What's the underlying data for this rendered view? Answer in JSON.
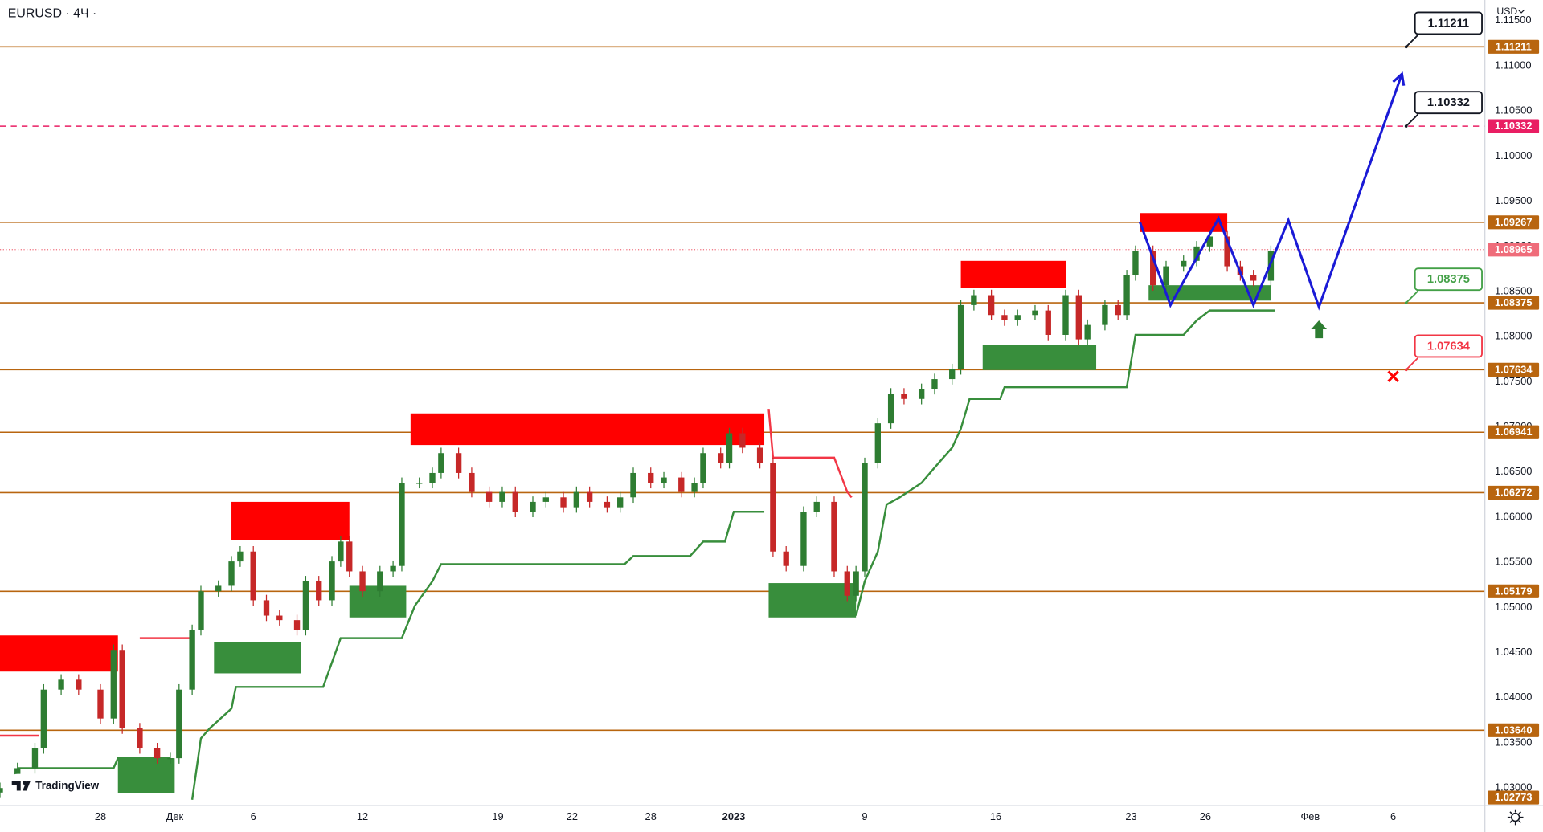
{
  "chart_data": {
    "type": "candlestick",
    "title": "EURUSD · 4Ч ·",
    "currency": "USD",
    "watermark": "TradingView",
    "up_color": "#2e7d32",
    "down_color": "#c62828",
    "x": [
      0,
      4,
      8,
      10,
      14,
      18,
      23,
      26,
      28,
      32,
      36,
      39,
      41,
      44,
      46,
      50,
      53,
      55,
      58,
      61,
      64,
      68,
      70,
      73,
      76,
      78,
      80,
      83,
      87,
      90,
      92,
      96,
      99,
      101,
      105,
      108,
      112,
      115,
      118,
      122,
      125,
      129,
      132,
      135,
      139,
      142,
      145,
      149,
      152,
      156,
      159,
      161,
      165,
      167,
      170,
      174,
      177,
      180,
      184,
      187,
      191,
      194,
      196,
      198,
      201,
      204,
      207,
      211,
      214,
      218,
      220,
      223,
      227,
      230,
      233,
      237,
      240,
      244,
      247,
      249,
      253,
      256,
      258,
      260,
      264,
      267,
      271,
      274,
      277,
      281,
      284,
      287,
      291
    ],
    "open": [
      1.0295,
      1.03,
      1.0322,
      1.0344,
      1.0409,
      1.042,
      1.0409,
      1.0377,
      1.0453,
      1.0366,
      1.0344,
      1.0333,
      1.0333,
      1.0409,
      1.0475,
      1.0518,
      1.0524,
      1.0551,
      1.0562,
      1.0508,
      1.0491,
      1.0486,
      1.0475,
      1.0529,
      1.0508,
      1.0551,
      1.0573,
      1.054,
      1.0518,
      1.054,
      1.0546,
      1.0638,
      1.0638,
      1.0649,
      1.0671,
      1.0649,
      1.0628,
      1.0617,
      1.0628,
      1.0606,
      1.0617,
      1.0622,
      1.0611,
      1.0628,
      1.0617,
      1.0611,
      1.0622,
      1.0649,
      1.0638,
      1.0644,
      1.0628,
      1.0638,
      1.0671,
      1.066,
      1.0693,
      1.0677,
      1.066,
      1.0562,
      1.0546,
      1.0606,
      1.0617,
      1.054,
      1.0513,
      1.054,
      1.066,
      1.0704,
      1.0737,
      1.0731,
      1.0742,
      1.0753,
      1.0764,
      1.0835,
      1.0846,
      1.0824,
      1.0818,
      1.0824,
      1.0829,
      1.0802,
      1.0846,
      1.0797,
      1.0813,
      1.0835,
      1.0824,
      1.0868,
      1.0895,
      1.0857,
      1.0878,
      1.0884,
      1.09,
      1.0911,
      1.0878,
      1.0868,
      1.0862
    ],
    "high": [
      1.0306,
      1.0328,
      1.035,
      1.0415,
      1.0426,
      1.0426,
      1.0415,
      1.0459,
      1.0459,
      1.0372,
      1.035,
      1.0339,
      1.0415,
      1.0481,
      1.0524,
      1.053,
      1.0557,
      1.0568,
      1.0568,
      1.0514,
      1.0497,
      1.0492,
      1.0535,
      1.0535,
      1.0557,
      1.0579,
      1.0579,
      1.0546,
      1.0546,
      1.0552,
      1.0644,
      1.0644,
      1.0655,
      1.0677,
      1.0677,
      1.0655,
      1.0634,
      1.0634,
      1.0634,
      1.0623,
      1.0628,
      1.0628,
      1.0634,
      1.0634,
      1.0623,
      1.0628,
      1.0655,
      1.0655,
      1.065,
      1.065,
      1.0644,
      1.0677,
      1.0677,
      1.0699,
      1.0699,
      1.0683,
      1.0666,
      1.0568,
      1.0612,
      1.0623,
      1.0623,
      1.0546,
      1.0546,
      1.0666,
      1.071,
      1.0743,
      1.0743,
      1.0748,
      1.0759,
      1.077,
      1.0841,
      1.0852,
      1.0852,
      1.083,
      1.083,
      1.0835,
      1.0835,
      1.0852,
      1.0852,
      1.0819,
      1.0841,
      1.0841,
      1.0874,
      1.0901,
      1.0901,
      1.0884,
      1.089,
      1.0906,
      1.0917,
      1.0917,
      1.0884,
      1.0874,
      1.0901
    ],
    "low": [
      1.0289,
      1.0294,
      1.0316,
      1.0338,
      1.0403,
      1.0403,
      1.0371,
      1.0371,
      1.036,
      1.0338,
      1.0327,
      1.0327,
      1.0327,
      1.0403,
      1.0469,
      1.0512,
      1.0518,
      1.0545,
      1.0502,
      1.0485,
      1.048,
      1.0469,
      1.0469,
      1.0502,
      1.0502,
      1.0545,
      1.0534,
      1.0512,
      1.0512,
      1.0534,
      1.054,
      1.0632,
      1.0632,
      1.0643,
      1.0643,
      1.0622,
      1.0611,
      1.0611,
      1.06,
      1.06,
      1.0611,
      1.0605,
      1.0605,
      1.0611,
      1.0605,
      1.0605,
      1.0616,
      1.0632,
      1.0632,
      1.0622,
      1.0622,
      1.0632,
      1.0654,
      1.0654,
      1.0671,
      1.0654,
      1.0556,
      1.054,
      1.054,
      1.06,
      1.0534,
      1.0507,
      1.0507,
      1.0534,
      1.0654,
      1.0698,
      1.0725,
      1.0725,
      1.0736,
      1.0747,
      1.0758,
      1.0829,
      1.0818,
      1.0812,
      1.0812,
      1.0818,
      1.0796,
      1.0796,
      1.0791,
      1.0791,
      1.0807,
      1.0818,
      1.0818,
      1.0862,
      1.0851,
      1.0851,
      1.0872,
      1.0878,
      1.0894,
      1.0872,
      1.0862,
      1.0856,
      1.0856
    ],
    "close": [
      1.03,
      1.0322,
      1.0344,
      1.0409,
      1.042,
      1.0409,
      1.0377,
      1.0453,
      1.0366,
      1.0344,
      1.0333,
      1.0333,
      1.0409,
      1.0475,
      1.0518,
      1.0524,
      1.0551,
      1.0562,
      1.0508,
      1.0491,
      1.0486,
      1.0475,
      1.0529,
      1.0508,
      1.0551,
      1.0573,
      1.054,
      1.0518,
      1.054,
      1.0546,
      1.0638,
      1.0638,
      1.0649,
      1.0671,
      1.0649,
      1.0628,
      1.0617,
      1.0628,
      1.0606,
      1.0617,
      1.0622,
      1.0611,
      1.0628,
      1.0617,
      1.0611,
      1.0622,
      1.0649,
      1.0638,
      1.0644,
      1.0628,
      1.0638,
      1.0671,
      1.066,
      1.0693,
      1.0677,
      1.066,
      1.0562,
      1.0546,
      1.0606,
      1.0617,
      1.054,
      1.0513,
      1.054,
      1.066,
      1.0704,
      1.0737,
      1.0731,
      1.0742,
      1.0753,
      1.0764,
      1.0835,
      1.0846,
      1.0824,
      1.0818,
      1.0824,
      1.0829,
      1.0802,
      1.0846,
      1.0797,
      1.0813,
      1.0835,
      1.0824,
      1.0868,
      1.0895,
      1.0857,
      1.0878,
      1.0884,
      1.09,
      1.0911,
      1.0878,
      1.0868,
      1.0862,
      1.0895
    ],
    "xlim": [
      0,
      340
    ],
    "xticks": [
      {
        "value": 23,
        "label": "28"
      },
      {
        "value": 40,
        "label": "Дек"
      },
      {
        "value": 58,
        "label": "6"
      },
      {
        "value": 83,
        "label": "12"
      },
      {
        "value": 114,
        "label": "19"
      },
      {
        "value": 131,
        "label": "22"
      },
      {
        "value": 149,
        "label": "28"
      },
      {
        "value": 168,
        "label": "2023",
        "bold": true
      },
      {
        "value": 198,
        "label": "9"
      },
      {
        "value": 228,
        "label": "16"
      },
      {
        "value": 259,
        "label": "23"
      },
      {
        "value": 276,
        "label": "26"
      },
      {
        "value": 300,
        "label": "Фев"
      },
      {
        "value": 319,
        "label": "6"
      }
    ],
    "ylim": [
      1.02807,
      1.1173
    ],
    "yticks": [
      {
        "value": 1.03,
        "label": "1.03000"
      },
      {
        "value": 1.035,
        "label": "1.03500"
      },
      {
        "value": 1.04,
        "label": "1.04000"
      },
      {
        "value": 1.045,
        "label": "1.04500"
      },
      {
        "value": 1.05,
        "label": "1.05000"
      },
      {
        "value": 1.055,
        "label": "1.05500"
      },
      {
        "value": 1.06,
        "label": "1.06000"
      },
      {
        "value": 1.065,
        "label": "1.06500"
      },
      {
        "value": 1.07,
        "label": "1.07000"
      },
      {
        "value": 1.075,
        "label": "1.07500"
      },
      {
        "value": 1.08,
        "label": "1.08000"
      },
      {
        "value": 1.085,
        "label": "1.08500"
      },
      {
        "value": 1.09,
        "label": "1.09000"
      },
      {
        "value": 1.095,
        "label": "1.09500"
      },
      {
        "value": 1.1,
        "label": "1.10000"
      },
      {
        "value": 1.105,
        "label": "1.10500"
      },
      {
        "value": 1.11,
        "label": "1.11000"
      },
      {
        "value": 1.115,
        "label": "1.11500"
      }
    ],
    "levels": [
      {
        "price": 1.11211,
        "color": "#b8650f",
        "style": "solid",
        "callout": "#131722"
      },
      {
        "price": 1.10332,
        "color": "#e91e63",
        "style": "dashed",
        "callout": "#131722"
      },
      {
        "price": 1.09267,
        "color": "#b8650f",
        "style": "solid"
      },
      {
        "price": 1.08965,
        "color": "#ef6c7a",
        "style": "dotted"
      },
      {
        "price": 1.08375,
        "color": "#b8650f",
        "style": "solid",
        "callout": "#43a047"
      },
      {
        "price": 1.07634,
        "color": "#b8650f",
        "style": "solid",
        "callout": "#f23645"
      },
      {
        "price": 1.06941,
        "color": "#b8650f",
        "style": "solid"
      },
      {
        "price": 1.06272,
        "color": "#b8650f",
        "style": "solid"
      },
      {
        "price": 1.05179,
        "color": "#b8650f",
        "style": "solid"
      },
      {
        "price": {
          "value": 1.0364,
          "label": "1.03640"
        },
        "color": "#b8650f",
        "style": "solid"
      },
      {
        "price": 1.02773,
        "color": "#b8650f",
        "style": "solid"
      }
    ],
    "zones": [
      {
        "color": "#ff0000",
        "x": [
          0,
          27
        ],
        "values": [
          1.0469,
          1.0429
        ]
      },
      {
        "color": "#ff0000",
        "x": [
          53,
          80
        ],
        "values": [
          1.0617,
          1.0575
        ]
      },
      {
        "color": "#ff0000",
        "x": [
          94,
          175
        ],
        "values": [
          1.0715,
          1.068
        ]
      },
      {
        "color": "#ff0000",
        "x": [
          220,
          244
        ],
        "values": [
          1.0884,
          1.0854
        ]
      },
      {
        "color": "#ff0000",
        "x": [
          261,
          281
        ],
        "values": [
          1.0937,
          1.0916
        ]
      },
      {
        "color": "#388e3c",
        "x": [
          27,
          40
        ],
        "values": [
          1.0333,
          1.0294
        ]
      },
      {
        "color": "#388e3c",
        "x": [
          49,
          69
        ],
        "values": [
          1.0462,
          1.0427
        ]
      },
      {
        "color": "#388e3c",
        "x": [
          80,
          93
        ],
        "values": [
          1.0524,
          1.0489
        ]
      },
      {
        "color": "#388e3c",
        "x": [
          176,
          196
        ],
        "values": [
          1.0527,
          1.0489
        ]
      },
      {
        "color": "#388e3c",
        "x": [
          225,
          251
        ],
        "values": [
          1.0791,
          1.0763
        ]
      },
      {
        "color": "#388e3c",
        "x": [
          263,
          291
        ],
        "values": [
          1.0857,
          1.084
        ]
      }
    ],
    "lines": [
      {
        "color": "#388e3c",
        "x": [
          4,
          26,
          27,
          39,
          40,
          44,
          46,
          48,
          53,
          54,
          74,
          78,
          92,
          95,
          99,
          101,
          143,
          145,
          158,
          161,
          166,
          168,
          175,
          176,
          196,
          198,
          201,
          203,
          206,
          211,
          214,
          218,
          220,
          222,
          229,
          230,
          258,
          260,
          271,
          274,
          277,
          292
        ],
        "values": [
          1.0322,
          1.0322,
          1.0333,
          1.0333,
          null,
          1.0287,
          1.0355,
          1.0366,
          1.0388,
          1.0412,
          1.0412,
          1.0466,
          1.0466,
          1.0502,
          1.0529,
          1.0548,
          1.0548,
          1.0557,
          1.0557,
          1.0573,
          1.0573,
          1.0606,
          1.0606,
          null,
          1.0491,
          1.0529,
          1.0562,
          1.0614,
          1.0622,
          1.0638,
          1.0655,
          1.0677,
          1.0698,
          1.0731,
          1.0731,
          1.0744,
          1.0744,
          1.0802,
          1.0802,
          1.0818,
          1.0829,
          1.0829
        ]
      },
      {
        "color": "#f23645",
        "x": [
          0,
          9,
          20,
          32,
          44,
          100,
          176,
          177,
          191,
          194,
          195
        ],
        "values": [
          1.0358,
          1.0358,
          null,
          1.0466,
          1.0466,
          null,
          1.072,
          1.0666,
          1.0666,
          1.0628,
          1.0622
        ]
      }
    ],
    "projection": {
      "color": "#1a1ad6",
      "x": [
        261,
        268,
        279,
        287,
        295,
        302,
        321
      ],
      "values": [
        1.0927,
        1.0835,
        1.0931,
        1.0835,
        1.0929,
        1.0833,
        1.1091
      ]
    },
    "markers": [
      {
        "shape": "arrow-up",
        "color": "#2e7d32",
        "x": 302,
        "value": 1.0818
      },
      {
        "shape": "cross",
        "color": "#ff0000",
        "x": 319,
        "value": 1.0756
      }
    ]
  }
}
